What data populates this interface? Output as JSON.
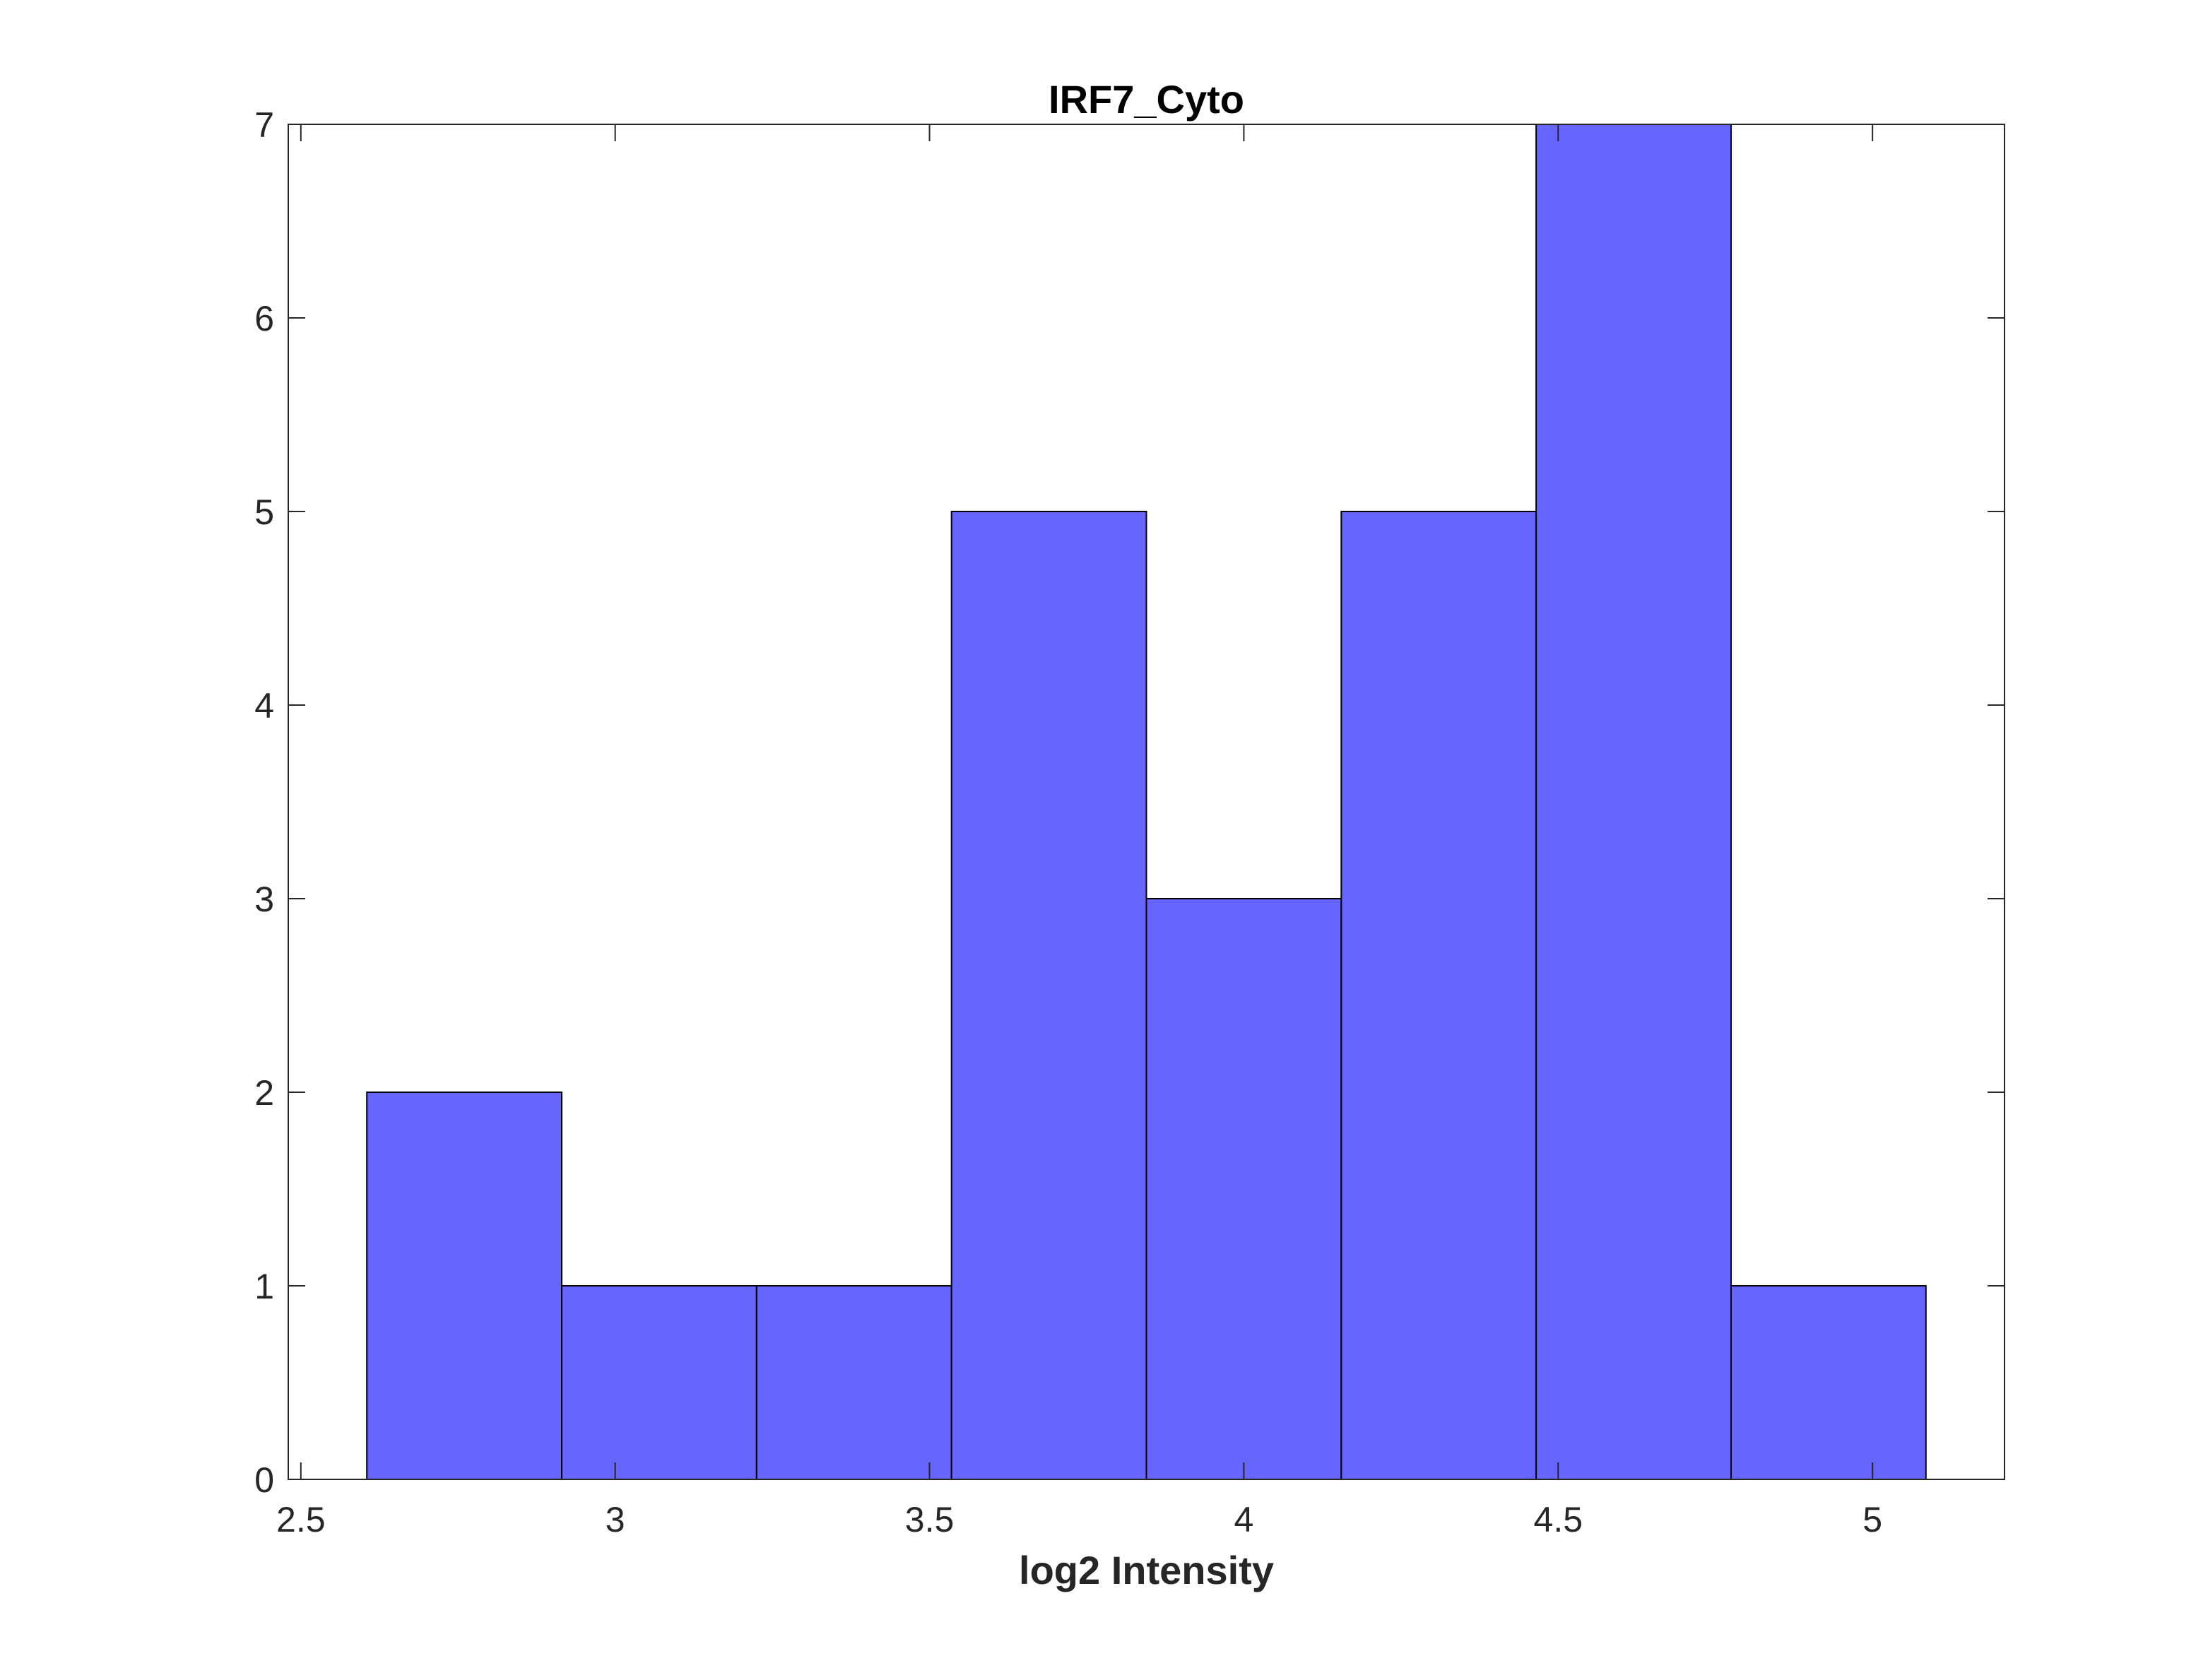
{
  "chart_data": {
    "type": "bar",
    "subtype": "histogram",
    "title": "IRF7_Cyto",
    "xlabel": "log2 Intensity",
    "ylabel": "",
    "xlim": [
      2.48,
      5.21
    ],
    "ylim": [
      0,
      7
    ],
    "xticks": [
      2.5,
      3,
      3.5,
      4,
      4.5,
      5
    ],
    "xtick_labels": [
      "2.5",
      "3",
      "3.5",
      "4",
      "4.5",
      "5"
    ],
    "yticks": [
      0,
      1,
      2,
      3,
      4,
      5,
      6,
      7
    ],
    "ytick_labels": [
      "0",
      "1",
      "2",
      "3",
      "4",
      "5",
      "6",
      "7"
    ],
    "bin_edges": [
      2.605,
      2.915,
      3.225,
      3.535,
      3.845,
      4.155,
      4.465,
      4.775,
      5.085
    ],
    "counts": [
      2,
      1,
      1,
      5,
      3,
      5,
      7,
      1
    ],
    "grid": false,
    "colors": {
      "bar_fill": "#6666ff",
      "bar_edge": "#000000",
      "axis": "#262626"
    }
  }
}
